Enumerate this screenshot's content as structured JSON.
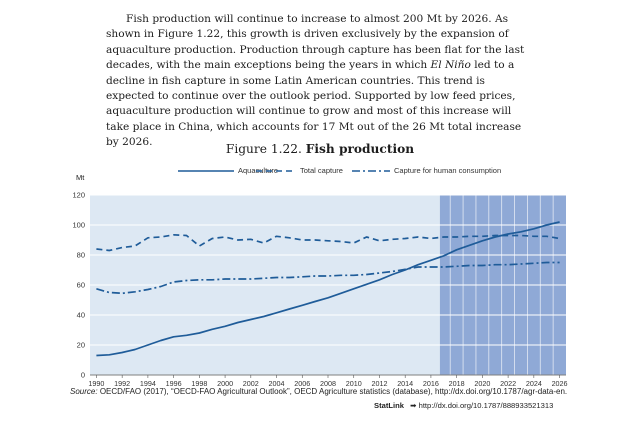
{
  "paragraph": {
    "before_italic": "Fish production will continue to increase to almost 200 Mt by 2026. As shown in Figure 1.22, this growth is driven exclusively by the expansion of aquaculture production. Production through capture has been flat for the last decades, with the main exceptions being the years in which ",
    "italic": "El Niño",
    "after_italic": " led to a decline in fish capture in some Latin American countries. This trend is expected to continue over the outlook period. Supported by low feed prices, aquaculture production will continue to grow and most of this increase will take place in China, which accounts for 17 Mt out of the 26 Mt total increase by 2026."
  },
  "figure": {
    "number": "Figure 1.22.",
    "name": "Fish production",
    "unit": "Mt"
  },
  "footer": {
    "source_label": "Source:",
    "source_text": "OECD/FAO (2017), “OECD-FAO Agricultural Outlook”, OECD Agriculture statistics (database), http://dx.doi.org/10.1787/agr-data-en.",
    "statlink_label": "StatLink",
    "statlink_url": "http://dx.doi.org/10.1787/888933521313"
  },
  "colors": {
    "line": "#1f5c99",
    "plot_bg": "#dde8f3",
    "projection_fill": "#8fa9d6"
  },
  "chart_data": {
    "type": "line",
    "x": [
      1990,
      1991,
      1992,
      1993,
      1994,
      1995,
      1996,
      1997,
      1998,
      1999,
      2000,
      2001,
      2002,
      2003,
      2004,
      2005,
      2006,
      2007,
      2008,
      2009,
      2010,
      2011,
      2012,
      2013,
      2014,
      2015,
      2016,
      2017,
      2018,
      2019,
      2020,
      2021,
      2022,
      2023,
      2024,
      2025,
      2026
    ],
    "ylim": [
      0,
      120
    ],
    "yticks": [
      0,
      20,
      40,
      60,
      80,
      100,
      120
    ],
    "xticks": [
      1990,
      1992,
      1994,
      1996,
      1998,
      2000,
      2002,
      2004,
      2006,
      2008,
      2010,
      2012,
      2014,
      2016,
      2018,
      2020,
      2022,
      2024,
      2026
    ],
    "projection_start": 2016.7,
    "grid": true,
    "legend_position": "top",
    "series": [
      {
        "name": "Aquaculture",
        "style": "solid",
        "values": [
          13,
          13.5,
          15,
          17,
          20,
          23,
          25.5,
          26.5,
          28,
          30.5,
          32.5,
          35,
          37,
          39,
          41.5,
          44,
          46.5,
          49,
          51.5,
          54.5,
          57.5,
          60.5,
          63.5,
          67,
          70,
          73.5,
          76.5,
          79.5,
          83.5,
          86.5,
          89.5,
          92,
          94,
          95.5,
          97.5,
          100,
          102
        ]
      },
      {
        "name": "Total capture",
        "style": "dashed",
        "values": [
          84,
          83,
          85,
          86,
          91.5,
          92,
          93.5,
          93,
          86,
          91,
          92,
          90,
          90.5,
          88,
          92.5,
          91.5,
          90,
          90,
          89.5,
          89,
          88,
          92,
          89.5,
          90.5,
          91,
          92,
          91,
          92,
          92,
          92.5,
          92.5,
          93,
          93,
          93,
          92.5,
          92.5,
          91
        ]
      },
      {
        "name": "Capture for human consumption",
        "style": "dashdot",
        "values": [
          57.5,
          55,
          54.5,
          55.5,
          57,
          59,
          62,
          63,
          63.5,
          63.5,
          64,
          64,
          64,
          64.5,
          65,
          65,
          65.5,
          66,
          66,
          66.5,
          66.5,
          67,
          68,
          69,
          70.5,
          72,
          72,
          72,
          72.5,
          73,
          73,
          73.5,
          73.5,
          74,
          74.5,
          75,
          75
        ]
      }
    ]
  }
}
